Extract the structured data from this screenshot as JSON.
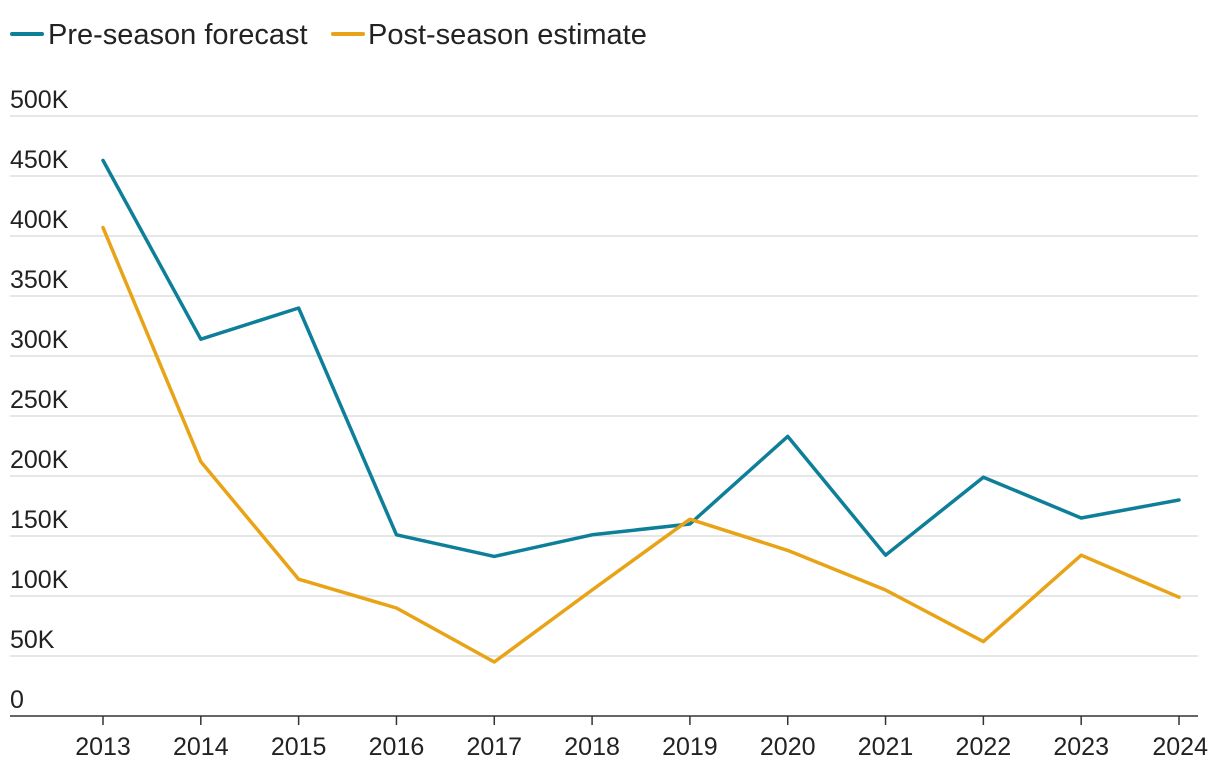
{
  "chart_data": {
    "type": "line",
    "title": "",
    "xlabel": "",
    "ylabel": "",
    "x": [
      2013,
      2014,
      2015,
      2016,
      2017,
      2018,
      2019,
      2020,
      2021,
      2022,
      2023,
      2024
    ],
    "x_tick_labels": [
      "2013",
      "2014",
      "2015",
      "2016",
      "2017",
      "2018",
      "2019",
      "2020",
      "2021",
      "2022",
      "2023",
      "2024"
    ],
    "ylim": [
      0,
      500000
    ],
    "y_ticks": [
      0,
      50000,
      100000,
      150000,
      200000,
      250000,
      300000,
      350000,
      400000,
      450000,
      500000
    ],
    "y_tick_labels": [
      "0",
      "50K",
      "100K",
      "150K",
      "200K",
      "250K",
      "300K",
      "350K",
      "400K",
      "450K",
      "500K"
    ],
    "grid": true,
    "legend_position": "top-left",
    "series": [
      {
        "name": "Pre-season forecast",
        "color": "#0e7f99",
        "values": [
          463000,
          314000,
          340000,
          151000,
          133000,
          151000,
          160000,
          233000,
          134000,
          199000,
          165000,
          180000
        ]
      },
      {
        "name": "Post-season estimate",
        "color": "#e8a317",
        "values": [
          407000,
          212000,
          114000,
          90000,
          45000,
          105000,
          164000,
          138000,
          105000,
          62000,
          134000,
          99000
        ]
      }
    ]
  }
}
